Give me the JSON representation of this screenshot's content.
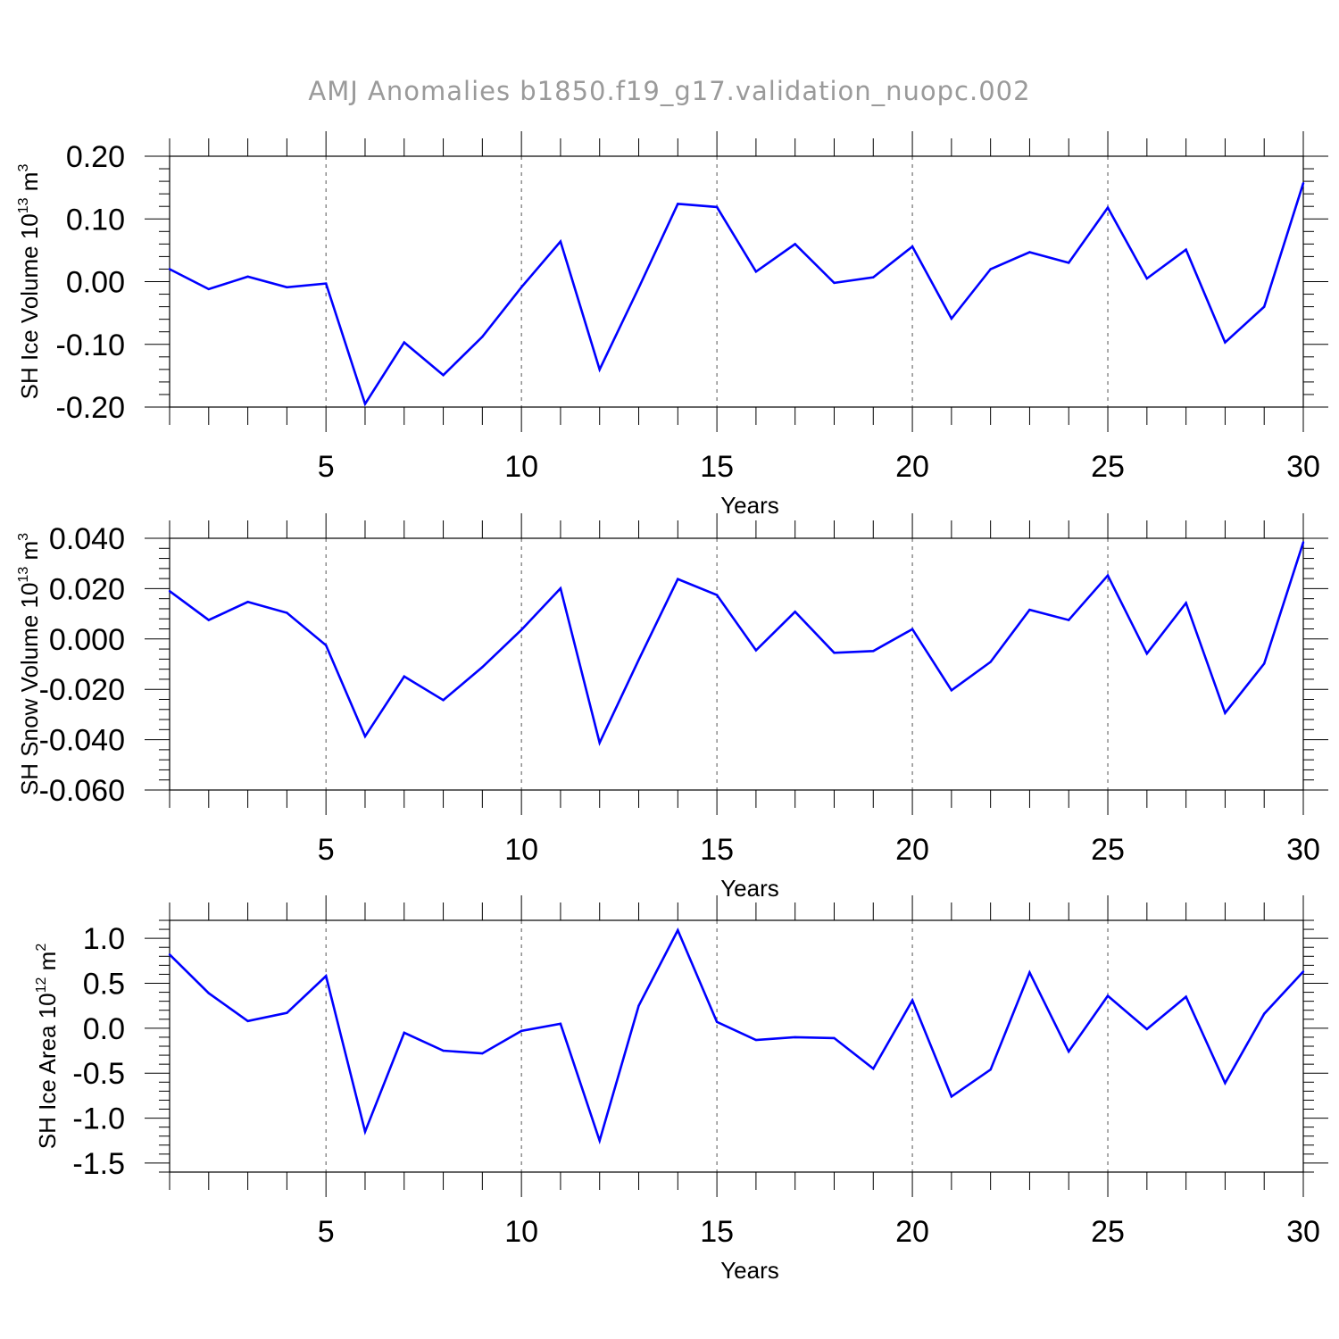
{
  "title": "AMJ Anomalies b1850.f19_g17.validation_nuopc.002",
  "colors": {
    "line": "#0000ff",
    "axis": "#000000",
    "grid": "#555555",
    "title": "#9a9a9a"
  },
  "chart_data": [
    {
      "type": "line",
      "xlabel": "Years",
      "ylabel": {
        "main": "SH Ice Volume 10",
        "sup": "13",
        "unit": " m",
        "unit_sup": "3"
      },
      "xlim": [
        1,
        30
      ],
      "ylim": [
        -0.2,
        0.2
      ],
      "xticks": [
        5,
        10,
        15,
        20,
        25,
        30
      ],
      "yticks": [
        -0.2,
        -0.1,
        0.0,
        0.1,
        0.2
      ],
      "yticklabels": [
        "-0.20",
        "-0.10",
        "0.00",
        "0.10",
        "0.20"
      ],
      "grid": "vertical dashed at major x ticks",
      "x": [
        1,
        2,
        3,
        4,
        5,
        6,
        7,
        8,
        9,
        10,
        11,
        12,
        13,
        14,
        15,
        16,
        17,
        18,
        19,
        20,
        21,
        22,
        23,
        24,
        25,
        26,
        27,
        28,
        29,
        30
      ],
      "values": [
        0.02,
        -0.012,
        0.008,
        -0.009,
        -0.003,
        -0.195,
        -0.097,
        -0.149,
        -0.088,
        -0.009,
        0.064,
        -0.14,
        -0.01,
        0.124,
        0.119,
        0.016,
        0.06,
        -0.002,
        0.007,
        0.056,
        -0.059,
        0.02,
        0.047,
        0.03,
        0.118,
        0.005,
        0.051,
        -0.097,
        -0.04,
        0.157
      ]
    },
    {
      "type": "line",
      "xlabel": "Years",
      "ylabel": {
        "main": "SH Snow Volume 10",
        "sup": "13",
        "unit": " m",
        "unit_sup": "3"
      },
      "xlim": [
        1,
        30
      ],
      "ylim": [
        -0.06,
        0.04
      ],
      "xticks": [
        5,
        10,
        15,
        20,
        25,
        30
      ],
      "yticks": [
        -0.06,
        -0.04,
        -0.02,
        0.0,
        0.02,
        0.04
      ],
      "yticklabels": [
        "-0.060",
        "-0.040",
        "-0.020",
        "0.000",
        "0.020",
        "0.040"
      ],
      "grid": "vertical dashed at major x ticks",
      "x": [
        1,
        2,
        3,
        4,
        5,
        6,
        7,
        8,
        9,
        10,
        11,
        12,
        13,
        14,
        15,
        16,
        17,
        18,
        19,
        20,
        21,
        22,
        23,
        24,
        25,
        26,
        27,
        28,
        29,
        30
      ],
      "values": [
        0.019,
        0.0075,
        0.0147,
        0.0104,
        -0.0025,
        -0.0387,
        -0.0149,
        -0.0243,
        -0.0112,
        0.0036,
        0.0201,
        -0.0412,
        -0.0083,
        0.0238,
        0.0175,
        -0.0045,
        0.0108,
        -0.0055,
        -0.0048,
        0.0039,
        -0.0204,
        -0.0091,
        0.0116,
        0.0075,
        0.0252,
        -0.0058,
        0.0143,
        -0.0294,
        -0.0098,
        0.0384
      ]
    },
    {
      "type": "line",
      "xlabel": "Years",
      "ylabel": {
        "main": "SH Ice Area 10",
        "sup": "12",
        "unit": " m",
        "unit_sup": "2"
      },
      "xlim": [
        1,
        30
      ],
      "ylim": [
        -1.6,
        1.2
      ],
      "xticks": [
        5,
        10,
        15,
        20,
        25,
        30
      ],
      "yticks": [
        -1.5,
        -1.0,
        -0.5,
        0.0,
        0.5,
        1.0
      ],
      "yticklabels": [
        "-1.5",
        "-1.0",
        "-0.5",
        "0.0",
        "0.5",
        "1.0"
      ],
      "grid": "vertical dashed at major x ticks",
      "x": [
        1,
        2,
        3,
        4,
        5,
        6,
        7,
        8,
        9,
        10,
        11,
        12,
        13,
        14,
        15,
        16,
        17,
        18,
        19,
        20,
        21,
        22,
        23,
        24,
        25,
        26,
        27,
        28,
        29,
        30
      ],
      "values": [
        0.82,
        0.39,
        0.08,
        0.17,
        0.58,
        -1.15,
        -0.05,
        -0.25,
        -0.28,
        -0.03,
        0.05,
        -1.25,
        0.25,
        1.09,
        0.07,
        -0.13,
        -0.1,
        -0.11,
        -0.45,
        0.31,
        -0.76,
        -0.46,
        0.62,
        -0.26,
        0.36,
        -0.01,
        0.35,
        -0.61,
        0.16,
        0.63
      ]
    }
  ]
}
